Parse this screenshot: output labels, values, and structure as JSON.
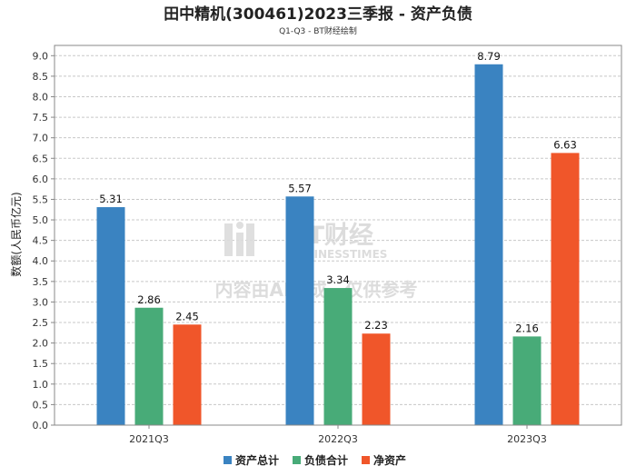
{
  "chart_data": {
    "type": "bar",
    "title": "田中精机(300461)2023三季报 - 资产负债",
    "subtitle": "Q1-Q3 - BT财经绘制",
    "ylabel": "数额(人民币亿元)",
    "xlabel": "",
    "categories": [
      "2021Q3",
      "2022Q3",
      "2023Q3"
    ],
    "ylim": [
      0,
      9.25
    ],
    "ytick_step": 0.5,
    "grid": true,
    "legend_position": "bottom-center",
    "series": [
      {
        "name": "资产总计",
        "color": "#3a83c1",
        "values": [
          5.31,
          5.57,
          8.79
        ]
      },
      {
        "name": "负债合计",
        "color": "#48ab78",
        "values": [
          2.86,
          3.34,
          2.16
        ]
      },
      {
        "name": "净资产",
        "color": "#f0562a",
        "values": [
          2.45,
          2.23,
          6.63
        ]
      }
    ]
  },
  "watermark": {
    "brand": "BT财经",
    "brand_en": "BUSINESSTIMES",
    "notice": "内容由AI生成，仅供参考"
  }
}
